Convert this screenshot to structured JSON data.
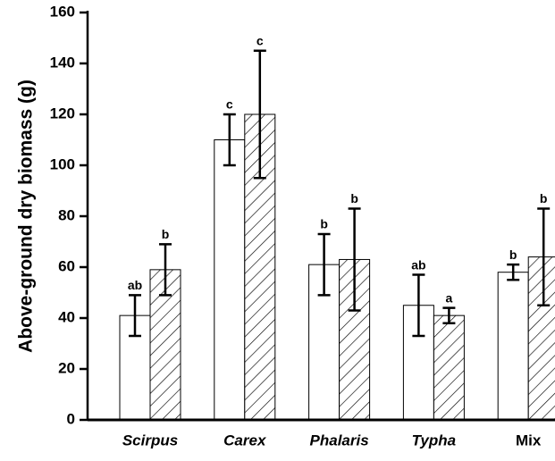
{
  "chart_data": {
    "type": "bar",
    "y_label": "Above-ground dry biomass (g)",
    "categories": [
      "Scirpus",
      "Carex",
      "Phalaris",
      "Typha",
      "Mix"
    ],
    "italic": [
      true,
      true,
      true,
      true,
      false
    ],
    "series": [
      {
        "color": "#ffffff",
        "hatch": false,
        "values": [
          41,
          110,
          61,
          45,
          58
        ],
        "errors": [
          8,
          10,
          12,
          12,
          3
        ],
        "letters": [
          "ab",
          "c",
          "b",
          "ab",
          "b"
        ]
      },
      {
        "color": "#ffffff",
        "hatch": true,
        "values": [
          59,
          120,
          63,
          41,
          64
        ],
        "errors": [
          10,
          25,
          20,
          3,
          19
        ],
        "letters": [
          "b",
          "c",
          "b",
          "a",
          "b"
        ]
      }
    ],
    "ylim": [
      0,
      160
    ],
    "yticks": [
      0,
      20,
      40,
      60,
      80,
      100,
      120,
      140,
      160
    ]
  }
}
